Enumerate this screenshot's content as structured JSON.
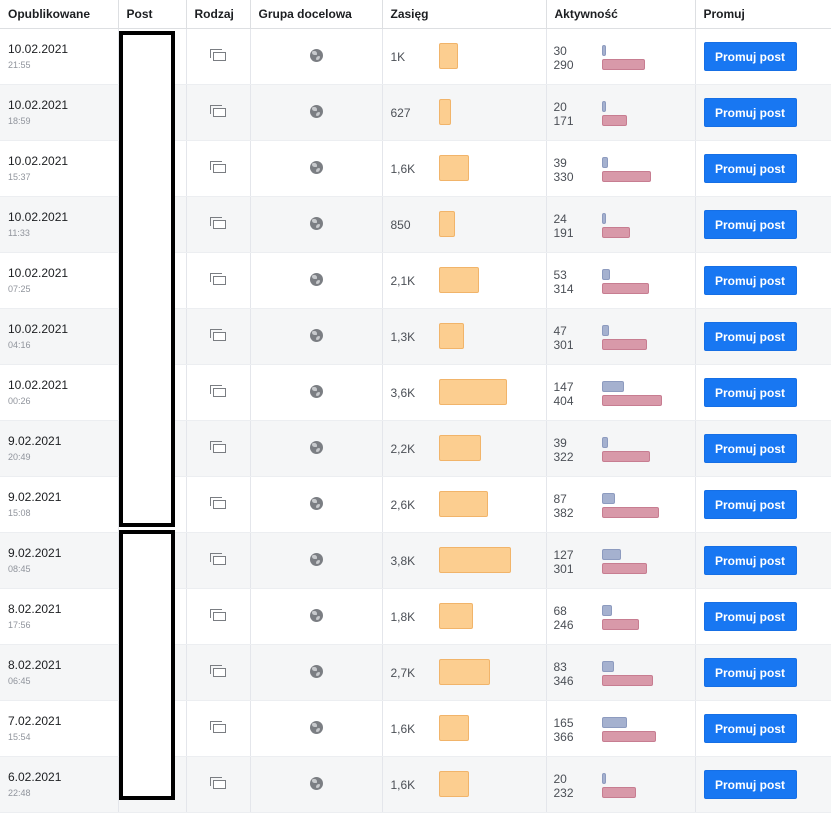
{
  "columns": {
    "published": "Opublikowane",
    "post": "Post",
    "type": "Rodzaj",
    "audience": "Grupa docelowa",
    "reach": "Zasięg",
    "activity": "Aktywność",
    "promote": "Promuj"
  },
  "promote_label": "Promuj post",
  "rows": [
    {
      "date": "10.02.2021",
      "time": "21:55",
      "reach": "1K",
      "reach_value": 1000,
      "act1": "30",
      "act2": "290",
      "act1_value": 30,
      "act2_value": 290
    },
    {
      "date": "10.02.2021",
      "time": "18:59",
      "reach": "627",
      "reach_value": 627,
      "act1": "20",
      "act2": "171",
      "act1_value": 20,
      "act2_value": 171
    },
    {
      "date": "10.02.2021",
      "time": "15:37",
      "reach": "1,6K",
      "reach_value": 1600,
      "act1": "39",
      "act2": "330",
      "act1_value": 39,
      "act2_value": 330
    },
    {
      "date": "10.02.2021",
      "time": "11:33",
      "reach": "850",
      "reach_value": 850,
      "act1": "24",
      "act2": "191",
      "act1_value": 24,
      "act2_value": 191
    },
    {
      "date": "10.02.2021",
      "time": "07:25",
      "reach": "2,1K",
      "reach_value": 2100,
      "act1": "53",
      "act2": "314",
      "act1_value": 53,
      "act2_value": 314
    },
    {
      "date": "10.02.2021",
      "time": "04:16",
      "reach": "1,3K",
      "reach_value": 1300,
      "act1": "47",
      "act2": "301",
      "act1_value": 47,
      "act2_value": 301
    },
    {
      "date": "10.02.2021",
      "time": "00:26",
      "reach": "3,6K",
      "reach_value": 3600,
      "act1": "147",
      "act2": "404",
      "act1_value": 147,
      "act2_value": 404
    },
    {
      "date": "9.02.2021",
      "time": "20:49",
      "reach": "2,2K",
      "reach_value": 2200,
      "act1": "39",
      "act2": "322",
      "act1_value": 39,
      "act2_value": 322
    },
    {
      "date": "9.02.2021",
      "time": "15:08",
      "reach": "2,6K",
      "reach_value": 2600,
      "act1": "87",
      "act2": "382",
      "act1_value": 87,
      "act2_value": 382
    },
    {
      "date": "9.02.2021",
      "time": "08:45",
      "reach": "3,8K",
      "reach_value": 3800,
      "act1": "127",
      "act2": "301",
      "act1_value": 127,
      "act2_value": 301
    },
    {
      "date": "8.02.2021",
      "time": "17:56",
      "reach": "1,8K",
      "reach_value": 1800,
      "act1": "68",
      "act2": "246",
      "act1_value": 68,
      "act2_value": 246
    },
    {
      "date": "8.02.2021",
      "time": "06:45",
      "reach": "2,7K",
      "reach_value": 2700,
      "act1": "83",
      "act2": "346",
      "act1_value": 83,
      "act2_value": 346
    },
    {
      "date": "7.02.2021",
      "time": "15:54",
      "reach": "1,6K",
      "reach_value": 1600,
      "act1": "165",
      "act2": "366",
      "act1_value": 165,
      "act2_value": 366
    },
    {
      "date": "6.02.2021",
      "time": "22:48",
      "reach": "1,6K",
      "reach_value": 1600,
      "act1": "20",
      "act2": "232",
      "act1_value": 20,
      "act2_value": 232
    }
  ],
  "colors": {
    "reach_bar": "#fcce90",
    "activity_bar_top": "#a5b1cf",
    "activity_bar_bottom": "#d899a9",
    "promote_button": "#1877f2"
  },
  "icons": {
    "type": "post-type-icon",
    "audience": "globe-icon"
  }
}
